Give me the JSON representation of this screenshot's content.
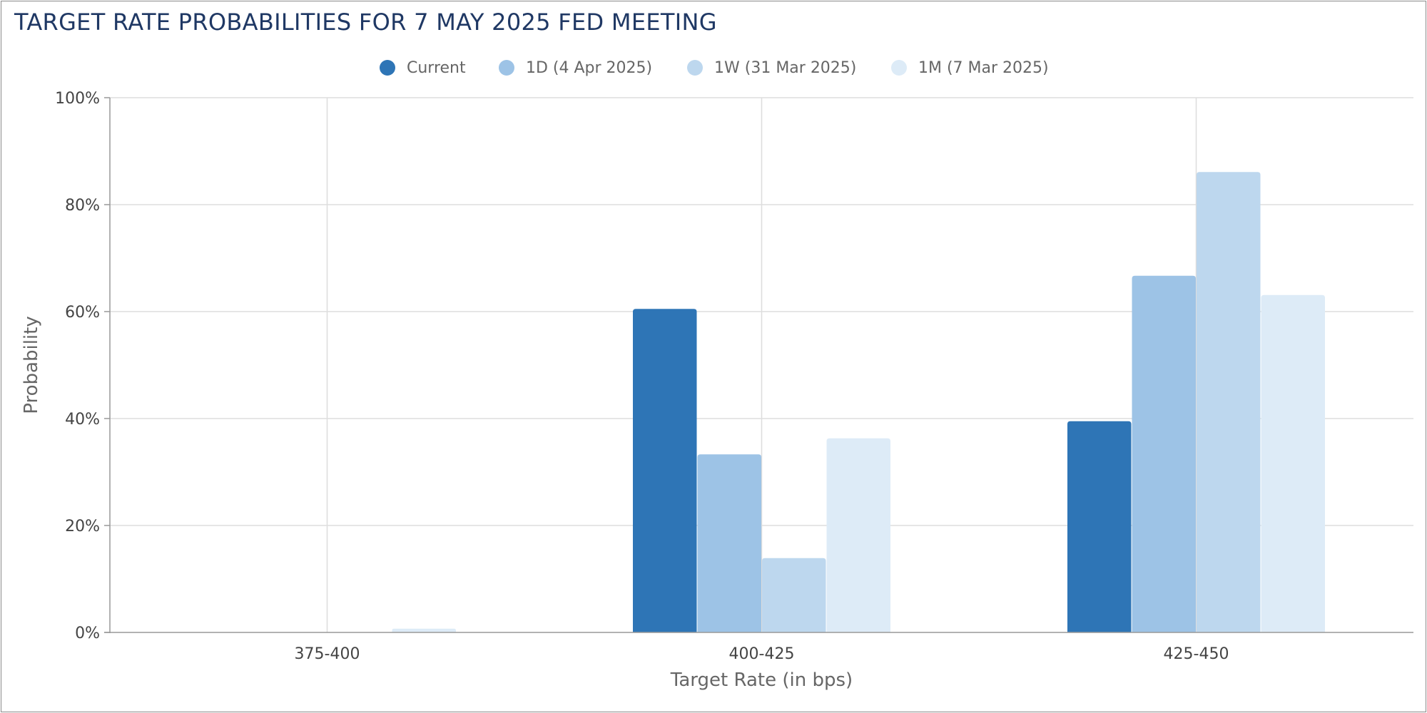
{
  "chart_data": {
    "type": "bar",
    "title": "TARGET RATE PROBABILITIES FOR 7 MAY 2025 FED MEETING",
    "xlabel": "Target Rate (in bps)",
    "ylabel": "Probability",
    "categories": [
      "375-400",
      "400-425",
      "425-450"
    ],
    "y_ticks": [
      "0%",
      "20%",
      "40%",
      "60%",
      "80%",
      "100%"
    ],
    "ylim": [
      0,
      100
    ],
    "y_unit": "%",
    "grid": true,
    "legend_position": "top-center",
    "series": [
      {
        "name": "Current",
        "color": "#2e75b6",
        "values": [
          0,
          60.5,
          39.5
        ]
      },
      {
        "name": "1D (4 Apr 2025)",
        "color": "#9dc3e6",
        "values": [
          0,
          33.3,
          66.7
        ]
      },
      {
        "name": "1W (31 Mar 2025)",
        "color": "#bdd7ee",
        "values": [
          0,
          13.9,
          86.1
        ]
      },
      {
        "name": "1M (7 Mar 2025)",
        "color": "#ddebf7",
        "values": [
          0.7,
          36.3,
          63.1
        ]
      }
    ]
  }
}
